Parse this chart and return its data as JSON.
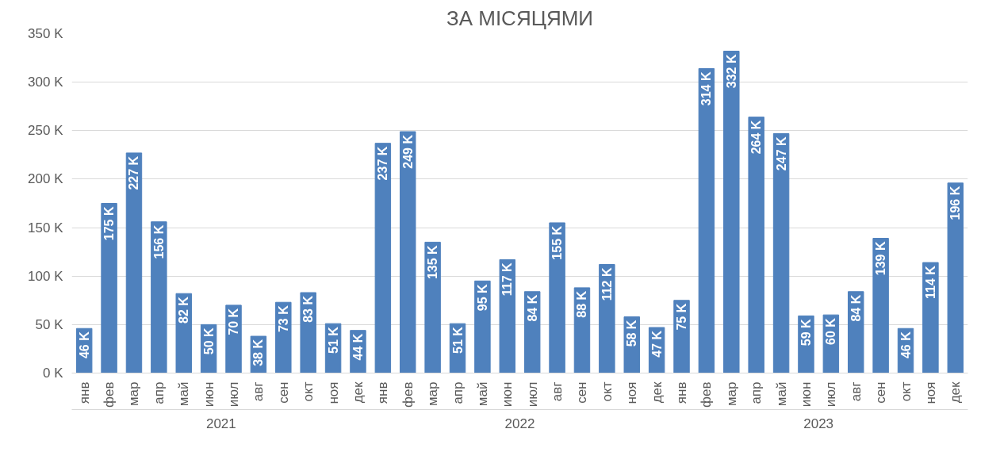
{
  "chart_data": {
    "type": "bar",
    "title": "ЗА МІСЯЦЯМИ",
    "categories": [
      "янв",
      "фев",
      "мар",
      "апр",
      "май",
      "июн",
      "июл",
      "авг",
      "сен",
      "окт",
      "ноя",
      "дек",
      "янв",
      "фев",
      "мар",
      "апр",
      "май",
      "июн",
      "июл",
      "авг",
      "сен",
      "окт",
      "ноя",
      "дек",
      "янв",
      "фев",
      "мар",
      "апр",
      "май",
      "июн",
      "июл",
      "авг",
      "сен",
      "окт",
      "ноя",
      "дек"
    ],
    "values": [
      46,
      175,
      227,
      156,
      82,
      50,
      70,
      38,
      73,
      83,
      51,
      44,
      237,
      249,
      135,
      51,
      95,
      117,
      84,
      155,
      88,
      112,
      58,
      47,
      75,
      314,
      332,
      264,
      247,
      59,
      60,
      84,
      139,
      46,
      114,
      196
    ],
    "value_labels": [
      "46 K",
      "175 K",
      "227 K",
      "156 K",
      "82 K",
      "50 K",
      "70 K",
      "38 K",
      "73 K",
      "83 K",
      "51 K",
      "44 K",
      "237 K",
      "249 K",
      "135 K",
      "51 K",
      "95 K",
      "117 K",
      "84 K",
      "155 K",
      "88 K",
      "112 K",
      "58 K",
      "47 K",
      "75 K",
      "314 K",
      "332 K",
      "264 K",
      "247 K",
      "59 K",
      "60 K",
      "84 K",
      "139 K",
      "46 K",
      "114 K",
      "196 K"
    ],
    "color": "#4f81bd",
    "ylim": [
      0,
      350
    ],
    "yticks": [
      {
        "value": 0,
        "label": "0 K"
      },
      {
        "value": 50,
        "label": "50 K"
      },
      {
        "value": 100,
        "label": "100 K"
      },
      {
        "value": 150,
        "label": "150 K"
      },
      {
        "value": 200,
        "label": "200 K"
      },
      {
        "value": 250,
        "label": "250 K"
      },
      {
        "value": 300,
        "label": "300 K"
      },
      {
        "value": 350,
        "label": "350 K"
      }
    ],
    "grid": "y",
    "annotations": [
      "2021",
      "2022",
      "2023"
    ]
  }
}
